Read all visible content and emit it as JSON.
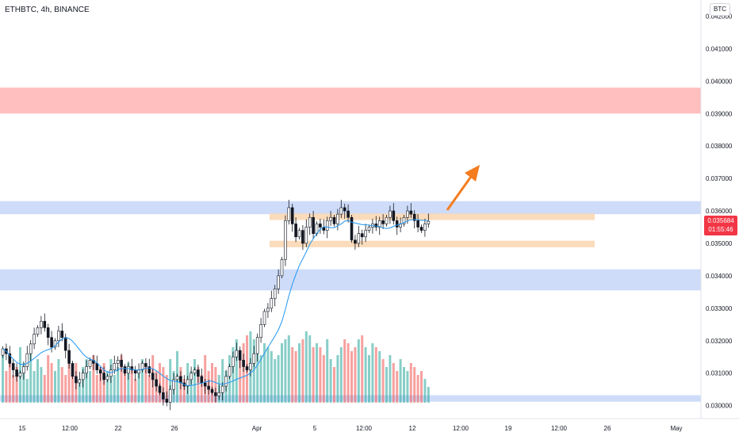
{
  "header": {
    "symbol": "ETHBTC, 4h, BINANCE",
    "currency": "BTC"
  },
  "price_tag": {
    "price": "0.035684",
    "countdown": "01:55:46"
  },
  "colors": {
    "bull": "#26a69a",
    "bear": "#ef5350",
    "ma": "#2196f3",
    "resistance_zone": "#ffb8b8",
    "support_zone": "#c9d8f8",
    "range_zone": "#fad7b4",
    "arrow": "#f57c1f"
  },
  "chart_data": {
    "type": "candlestick",
    "title": "",
    "y_axis": {
      "min": 0.0296,
      "max": 0.0425,
      "ticks": [
        "0.042000",
        "0.041000",
        "0.040000",
        "0.039000",
        "0.038000",
        "0.037000",
        "0.036000",
        "0.035000",
        "0.034000",
        "0.033000",
        "0.032000",
        "0.031000",
        "0.030000"
      ]
    },
    "x_axis": {
      "ticks": [
        "15",
        "12:00",
        "22",
        "26",
        "Apr",
        "5",
        "12:00",
        "12",
        "12:00",
        "19",
        "12:00",
        "26",
        "May"
      ]
    },
    "zones": [
      {
        "kind": "resistance",
        "from": 0.039,
        "to": 0.0398
      },
      {
        "kind": "support",
        "from": 0.0359,
        "to": 0.0363
      },
      {
        "kind": "range-high",
        "from": 0.03572,
        "to": 0.03592
      },
      {
        "kind": "range-low",
        "from": 0.03488,
        "to": 0.03508
      },
      {
        "kind": "support",
        "from": 0.03355,
        "to": 0.0342
      },
      {
        "kind": "support",
        "from": 0.03012,
        "to": 0.03032
      }
    ],
    "ohlc_close": [
      0.03175,
      0.0316,
      0.0313,
      0.0311,
      0.0309,
      0.031,
      0.0312,
      0.0316,
      0.0319,
      0.0322,
      0.0324,
      0.0326,
      0.0324,
      0.0321,
      0.0318,
      0.032,
      0.0323,
      0.0321,
      0.0317,
      0.0313,
      0.0309,
      0.0307,
      0.0308,
      0.031,
      0.0312,
      0.0314,
      0.0313,
      0.0311,
      0.031,
      0.0308,
      0.0309,
      0.0311,
      0.0313,
      0.0314,
      0.0312,
      0.031,
      0.0312,
      0.0311,
      0.031,
      0.0311,
      0.0313,
      0.0312,
      0.031,
      0.0308,
      0.0306,
      0.0304,
      0.0302,
      0.0301,
      0.0305,
      0.0308,
      0.0309,
      0.0307,
      0.0306,
      0.0308,
      0.031,
      0.0311,
      0.0309,
      0.0307,
      0.0306,
      0.0305,
      0.0304,
      0.0303,
      0.0304,
      0.0306,
      0.0309,
      0.0312,
      0.0315,
      0.0317,
      0.0314,
      0.0312,
      0.0311,
      0.0313,
      0.0316,
      0.0321,
      0.0325,
      0.0329,
      0.033,
      0.0333,
      0.0336,
      0.034,
      0.0345,
      0.0357,
      0.0361,
      0.0356,
      0.0352,
      0.0354,
      0.035,
      0.0355,
      0.0358,
      0.0353,
      0.0356,
      0.0355,
      0.0354,
      0.0357,
      0.0358,
      0.0356,
      0.0359,
      0.0361,
      0.036,
      0.0358,
      0.0351,
      0.035,
      0.0353,
      0.0352,
      0.0354,
      0.0355,
      0.0356,
      0.0355,
      0.0357,
      0.0356,
      0.0358,
      0.036,
      0.0357,
      0.0355,
      0.0356,
      0.0358,
      0.036,
      0.0359,
      0.0357,
      0.0355,
      0.0354,
      0.0356,
      0.03568
    ],
    "ma_note": "moving average overlay",
    "volume": [
      60,
      40,
      55,
      35,
      45,
      70,
      50,
      30,
      65,
      40,
      55,
      45,
      35,
      60,
      50,
      40,
      55,
      45,
      35,
      65,
      40,
      50,
      30,
      45,
      55,
      40,
      60,
      35,
      45,
      50,
      40,
      55,
      35,
      45,
      60,
      40,
      50,
      45,
      30,
      40,
      55,
      45,
      35,
      60,
      40,
      50,
      45,
      35,
      55,
      40,
      65,
      45,
      30,
      50,
      40,
      55,
      45,
      35,
      60,
      40,
      50,
      45,
      35,
      55,
      40,
      60,
      70,
      80,
      65,
      75,
      85,
      90,
      80,
      70,
      60,
      75,
      70,
      65,
      55,
      60,
      75,
      80,
      85,
      70,
      65,
      75,
      80,
      90,
      85,
      70,
      75,
      70,
      60,
      80,
      55,
      45,
      60,
      70,
      80,
      75,
      65,
      70,
      80,
      85,
      70,
      60,
      75,
      70,
      65,
      55,
      45,
      60,
      50,
      40,
      55,
      45,
      40,
      50,
      45,
      35,
      40,
      30,
      20
    ]
  }
}
